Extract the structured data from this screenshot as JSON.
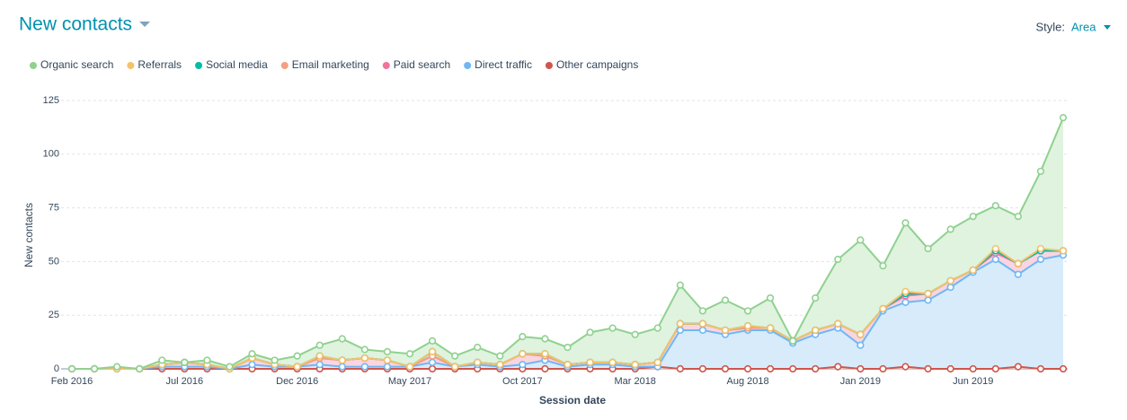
{
  "chart_data": {
    "type": "area",
    "stacked": true,
    "title": "New contacts",
    "style_label": "Style:",
    "style_value": "Area",
    "x_label": "Session date",
    "y_label": "New contacts",
    "categories": [
      "Feb 2016",
      null,
      null,
      null,
      null,
      "Jul 2016",
      null,
      null,
      null,
      null,
      "Dec 2016",
      null,
      null,
      null,
      null,
      "May 2017",
      null,
      null,
      null,
      null,
      "Oct 2017",
      null,
      null,
      null,
      null,
      "Mar 2018",
      null,
      null,
      null,
      null,
      "Aug 2018",
      null,
      null,
      null,
      null,
      "Jan 2019",
      null,
      null,
      null,
      null,
      "Jun 2019",
      null,
      null,
      null,
      null
    ],
    "ylim": [
      0,
      125
    ],
    "yticks": [
      0,
      25,
      50,
      75,
      100,
      125
    ],
    "grid": true,
    "legend": "top-left",
    "series": [
      {
        "name": "Organic search",
        "color": "#8fd18f",
        "fill": "#dcf2dc",
        "values": [
          0,
          0,
          1,
          0,
          2,
          0,
          2,
          1,
          2,
          2,
          5,
          5,
          10,
          4,
          4,
          6,
          5,
          5,
          7,
          4,
          8,
          7,
          8,
          14,
          16,
          14,
          16,
          18,
          6,
          14,
          7,
          14,
          0,
          15,
          30,
          44,
          20,
          32,
          21,
          24,
          25,
          20,
          22,
          36,
          62
        ]
      },
      {
        "name": "Referrals",
        "color": "#f5c26b",
        "fill": "#fbe7c4",
        "values": [
          0,
          0,
          0,
          0,
          0,
          0,
          0,
          0,
          0,
          0,
          0,
          0,
          0,
          0,
          0,
          0,
          0,
          0,
          0,
          0,
          0,
          0,
          0,
          0,
          0,
          0,
          0,
          0,
          0,
          0,
          0,
          0,
          0,
          0,
          0,
          0,
          0,
          1,
          0,
          0,
          0,
          1,
          0,
          1,
          0
        ]
      },
      {
        "name": "Social media",
        "color": "#00bda5",
        "fill": "#b3ebe4",
        "values": [
          0,
          0,
          0,
          0,
          0,
          0,
          0,
          0,
          0,
          0,
          0,
          1,
          0,
          0,
          0,
          0,
          2,
          0,
          0,
          0,
          0,
          1,
          0,
          0,
          0,
          0,
          0,
          0,
          0,
          0,
          1,
          0,
          0,
          0,
          0,
          0,
          0,
          0,
          0,
          0,
          0,
          0,
          0,
          0,
          0
        ]
      },
      {
        "name": "Email marketing",
        "color": "#f2a080",
        "fill": "#fbdccf",
        "values": [
          0,
          0,
          0,
          0,
          0,
          0,
          0,
          0,
          0,
          0,
          0,
          0,
          0,
          0,
          0,
          0,
          0,
          0,
          0,
          0,
          0,
          0,
          0,
          0,
          0,
          0,
          0,
          0,
          0,
          0,
          0,
          0,
          0,
          0,
          0,
          0,
          0,
          1,
          0,
          0,
          0,
          1,
          0,
          0,
          0
        ]
      },
      {
        "name": "Paid search",
        "color": "#f2739c",
        "fill": "#f9d0de",
        "values": [
          0,
          0,
          0,
          0,
          1,
          2,
          1,
          0,
          3,
          1,
          0,
          3,
          3,
          4,
          3,
          0,
          3,
          0,
          1,
          1,
          5,
          2,
          1,
          1,
          1,
          1,
          2,
          3,
          3,
          2,
          1,
          1,
          1,
          2,
          2,
          5,
          1,
          3,
          3,
          3,
          1,
          3,
          5,
          4,
          2
        ]
      },
      {
        "name": "Direct traffic",
        "color": "#6fb7f5",
        "fill": "#d3e9fb",
        "values": [
          0,
          0,
          0,
          0,
          1,
          1,
          1,
          0,
          2,
          1,
          1,
          2,
          1,
          1,
          1,
          1,
          3,
          1,
          2,
          1,
          2,
          4,
          1,
          2,
          2,
          1,
          0,
          18,
          18,
          16,
          18,
          18,
          12,
          16,
          18,
          11,
          27,
          30,
          32,
          38,
          45,
          51,
          43,
          51,
          53
        ]
      },
      {
        "name": "Other campaigns",
        "color": "#d0554b",
        "fill": "#f3cdca",
        "values": [
          0,
          0,
          0,
          0,
          0,
          0,
          0,
          0,
          0,
          0,
          0,
          0,
          0,
          0,
          0,
          0,
          0,
          0,
          0,
          0,
          0,
          0,
          0,
          0,
          0,
          0,
          1,
          0,
          0,
          0,
          0,
          0,
          0,
          0,
          1,
          0,
          0,
          1,
          0,
          0,
          0,
          0,
          1,
          0,
          0
        ]
      }
    ]
  }
}
